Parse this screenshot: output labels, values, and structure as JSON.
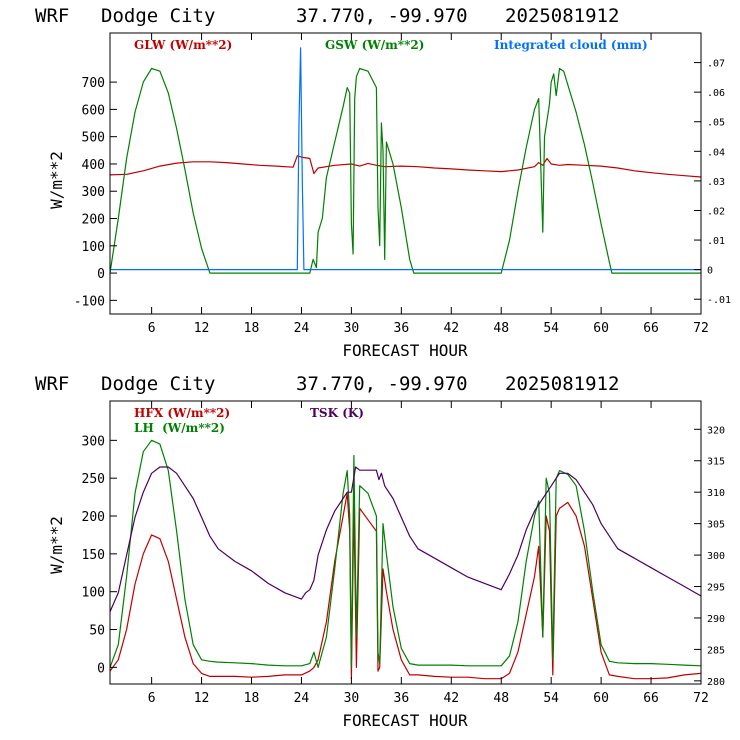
{
  "charts": [
    {
      "header": {
        "model": "WRF",
        "location": "Dodge City",
        "coords": "37.770, -99.970",
        "run": "2025081912"
      },
      "xlabel": "FORECAST HOUR",
      "ylabel": "W/m**2",
      "x_ticks": [
        "6",
        "12",
        "18",
        "24",
        "30",
        "36",
        "42",
        "48",
        "54",
        "60",
        "66",
        "72"
      ],
      "y_ticks": [
        "-100",
        "0",
        "100",
        "200",
        "300",
        "400",
        "500",
        "600",
        "700"
      ],
      "y2_ticks": [
        "-.01",
        "0",
        ".01",
        ".02",
        ".03",
        ".04",
        ".05",
        ".06",
        ".07"
      ],
      "legend": [
        {
          "label": "GLW (W/m**2)",
          "color": "#c00000"
        },
        {
          "label": "GSW (W/m**2)",
          "color": "#008000"
        },
        {
          "label": "Integrated cloud (mm)",
          "color": "#0070ff"
        }
      ]
    },
    {
      "header": {
        "model": "WRF",
        "location": "Dodge City",
        "coords": "37.770, -99.970",
        "run": "2025081912"
      },
      "xlabel": "FORECAST HOUR",
      "ylabel": "W/m**2",
      "x_ticks": [
        "6",
        "12",
        "18",
        "24",
        "30",
        "36",
        "42",
        "48",
        "54",
        "60",
        "66",
        "72"
      ],
      "y_ticks": [
        "0",
        "50",
        "100",
        "150",
        "200",
        "250",
        "300"
      ],
      "y2_ticks": [
        "280",
        "285",
        "290",
        "295",
        "300",
        "305",
        "310",
        "315",
        "320"
      ],
      "legend": [
        {
          "label": "HFX (W/m**2)",
          "color": "#c00000"
        },
        {
          "label": "LH  (W/m**2)",
          "color": "#008000"
        },
        {
          "label": "TSK (K)",
          "color": "#4b0060"
        }
      ]
    }
  ],
  "chart_data": [
    {
      "type": "line",
      "xlim": [
        1,
        72
      ],
      "ylim": [
        -150,
        880
      ],
      "y2lim": [
        -0.015,
        0.08
      ],
      "series": [
        {
          "name": "GLW (W/m**2)",
          "color": "#c00000",
          "axis": "left",
          "x": [
            1,
            3,
            5,
            7,
            9,
            11,
            13,
            15,
            17,
            19,
            21,
            23,
            23.5,
            24,
            25,
            25.5,
            26,
            28,
            30,
            31,
            32,
            33,
            34,
            36,
            38,
            40,
            42,
            44,
            46,
            48,
            50,
            52,
            52.5,
            53,
            53.5,
            54,
            55,
            56,
            58,
            60,
            62,
            64,
            66,
            68,
            70,
            72
          ],
          "y": [
            360,
            362,
            375,
            392,
            403,
            408,
            408,
            405,
            400,
            395,
            392,
            388,
            430,
            425,
            420,
            365,
            385,
            395,
            400,
            392,
            402,
            395,
            390,
            392,
            390,
            385,
            382,
            378,
            375,
            372,
            378,
            390,
            405,
            395,
            420,
            400,
            395,
            398,
            395,
            392,
            385,
            375,
            368,
            362,
            357,
            352
          ]
        },
        {
          "name": "GSW (W/m**2)",
          "color": "#008000",
          "axis": "left",
          "x": [
            1,
            2,
            3,
            4,
            5,
            6,
            7,
            8,
            9,
            10,
            11,
            12,
            13,
            13.3,
            25,
            25.4,
            25.8,
            26,
            26.5,
            27,
            28,
            29,
            29.5,
            29.8,
            30,
            30.2,
            30.4,
            30.6,
            31,
            32,
            33,
            33.2,
            33.4,
            33.6,
            33.8,
            34,
            34.2,
            35,
            36,
            37,
            37.5,
            48,
            49,
            50,
            51,
            52,
            52.5,
            53,
            53.2,
            53.5,
            53.8,
            54,
            54.3,
            54.6,
            55,
            55.5,
            56,
            57,
            58,
            59,
            60,
            61,
            61.3,
            72
          ],
          "y": [
            0,
            200,
            420,
            590,
            700,
            750,
            740,
            660,
            530,
            380,
            220,
            90,
            0,
            0,
            0,
            50,
            20,
            150,
            200,
            350,
            480,
            610,
            680,
            660,
            180,
            70,
            640,
            720,
            750,
            740,
            680,
            240,
            100,
            550,
            450,
            50,
            480,
            400,
            240,
            50,
            0,
            0,
            120,
            300,
            460,
            600,
            640,
            150,
            500,
            560,
            620,
            700,
            730,
            650,
            750,
            740,
            690,
            590,
            470,
            330,
            180,
            40,
            0,
            0
          ]
        },
        {
          "name": "Integrated cloud (mm)",
          "color": "#0070ff",
          "axis": "right",
          "x": [
            1,
            23.5,
            23.7,
            23.9,
            24.1,
            24.3,
            72
          ],
          "y": [
            0,
            0,
            0.05,
            0.075,
            0.03,
            0,
            0
          ]
        }
      ]
    },
    {
      "type": "line",
      "xlim": [
        1,
        72
      ],
      "ylim": [
        -22,
        352
      ],
      "y2lim": [
        279.5,
        324.5
      ],
      "series": [
        {
          "name": "HFX (W/m**2)",
          "color": "#c00000",
          "axis": "left",
          "x": [
            1,
            2,
            3,
            4,
            5,
            6,
            7,
            8,
            9,
            10,
            11,
            12,
            13,
            14,
            16,
            18,
            20,
            22,
            24,
            25,
            25.5,
            26,
            27,
            28,
            29,
            29.5,
            29.8,
            30,
            30.3,
            30.6,
            31,
            32,
            33,
            33.2,
            33.4,
            33.8,
            34.2,
            35,
            36,
            37,
            38,
            40,
            42,
            44,
            46,
            48,
            49,
            50,
            51,
            52,
            52.5,
            53,
            53.4,
            53.8,
            54.2,
            54.6,
            55,
            56,
            57,
            58,
            59,
            60,
            61,
            62,
            64,
            66,
            68,
            70,
            72
          ],
          "y": [
            -5,
            10,
            50,
            110,
            150,
            175,
            170,
            140,
            90,
            40,
            5,
            -8,
            -12,
            -12,
            -12,
            -13,
            -12,
            -10,
            -10,
            -5,
            0,
            10,
            60,
            140,
            200,
            230,
            180,
            -15,
            215,
            0,
            210,
            195,
            180,
            -5,
            0,
            130,
            100,
            50,
            10,
            -10,
            -10,
            -12,
            -13,
            -13,
            -15,
            -15,
            -8,
            20,
            70,
            120,
            160,
            40,
            200,
            180,
            -10,
            200,
            210,
            218,
            200,
            160,
            90,
            20,
            -10,
            -12,
            -15,
            -15,
            -14,
            -10,
            -8
          ]
        },
        {
          "name": "LH  (W/m**2)",
          "color": "#008000",
          "axis": "left",
          "x": [
            1,
            2,
            3,
            4,
            5,
            6,
            7,
            8,
            9,
            10,
            11,
            12,
            13,
            14,
            16,
            18,
            20,
            22,
            24,
            25,
            25.5,
            26,
            27,
            28,
            29,
            29.5,
            29.8,
            30,
            30.3,
            30.6,
            31,
            32,
            33,
            33.2,
            33.4,
            33.8,
            34.2,
            35,
            36,
            37,
            38,
            40,
            42,
            44,
            46,
            48,
            49,
            50,
            51,
            52,
            52.5,
            53,
            53.4,
            53.8,
            54.2,
            54.6,
            55,
            56,
            57,
            58,
            59,
            60,
            61,
            62,
            64,
            66,
            68,
            70,
            72
          ],
          "y": [
            0,
            30,
            120,
            230,
            285,
            300,
            295,
            260,
            180,
            90,
            30,
            10,
            8,
            7,
            6,
            5,
            3,
            2,
            2,
            5,
            20,
            0,
            40,
            130,
            230,
            260,
            200,
            0,
            280,
            40,
            240,
            230,
            200,
            20,
            5,
            190,
            150,
            80,
            25,
            5,
            3,
            3,
            3,
            2,
            2,
            2,
            15,
            60,
            140,
            200,
            220,
            40,
            250,
            230,
            10,
            250,
            260,
            255,
            240,
            180,
            100,
            30,
            8,
            6,
            5,
            5,
            4,
            3,
            2
          ]
        },
        {
          "name": "TSK (K)",
          "color": "#4b0060",
          "axis": "right",
          "x": [
            1,
            2,
            3,
            4,
            5,
            6,
            7,
            8,
            9,
            10,
            11,
            12,
            13,
            14,
            16,
            18,
            20,
            22,
            24,
            24.5,
            25,
            25.5,
            26,
            27,
            28,
            29,
            29.5,
            30,
            30.5,
            31,
            32,
            33,
            33.3,
            33.6,
            34,
            35,
            36,
            37,
            38,
            40,
            42,
            44,
            46,
            48,
            49,
            50,
            51,
            52,
            53,
            53.5,
            54,
            54.5,
            55,
            56,
            57,
            58,
            59,
            60,
            61,
            62,
            64,
            66,
            68,
            70,
            72
          ],
          "y": [
            291,
            294,
            300,
            306,
            310,
            313,
            314,
            314,
            313,
            311,
            309,
            306,
            303,
            301,
            299,
            297.5,
            295.5,
            294,
            293,
            294,
            294.5,
            296,
            300,
            304,
            307,
            309,
            310,
            310,
            314,
            313.5,
            313.5,
            313.5,
            312,
            313,
            311,
            309,
            306,
            303,
            301,
            299.5,
            298,
            296.5,
            295.5,
            294.5,
            297,
            300,
            304,
            307,
            309,
            310,
            311,
            312,
            313,
            313,
            312,
            310,
            308,
            305,
            303,
            301,
            299.5,
            298,
            296.5,
            295,
            293.5
          ]
        }
      ]
    }
  ]
}
